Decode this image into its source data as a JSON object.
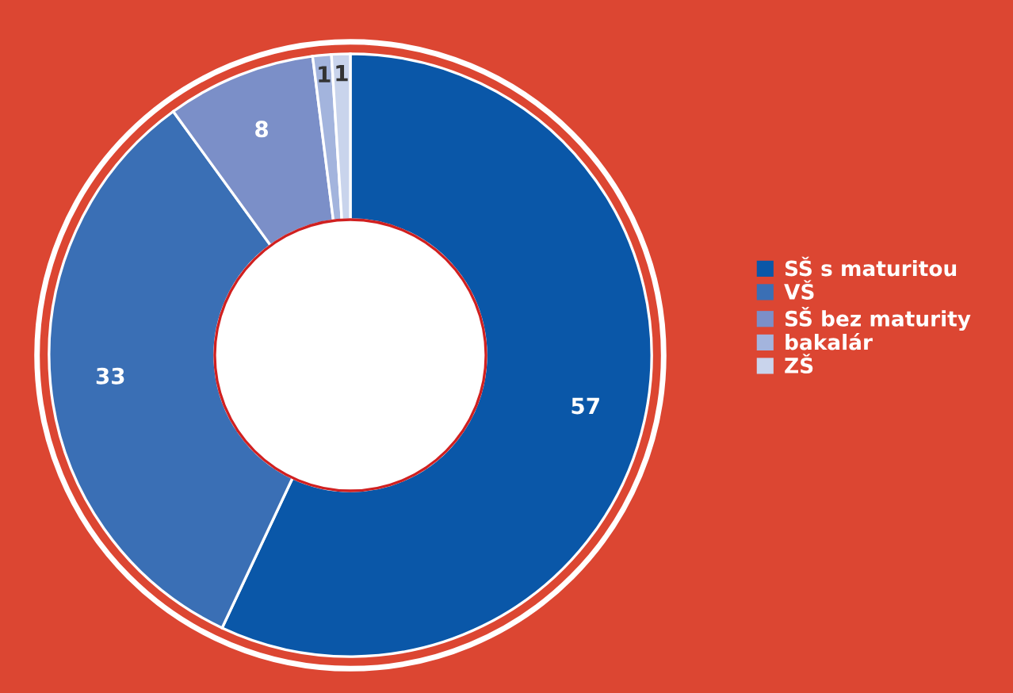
{
  "chart_data": {
    "type": "donut",
    "categories": [
      "SŠ s maturitou",
      "VŠ",
      "SŠ bez maturity",
      "bakalár",
      "ZŠ"
    ],
    "values": [
      57,
      33,
      8,
      1,
      1
    ],
    "colors": [
      "#0a57a8",
      "#3a6fb5",
      "#7b8fc8",
      "#a3b4dd",
      "#c9d4ec"
    ],
    "data_labels": true,
    "legend": "right"
  }
}
